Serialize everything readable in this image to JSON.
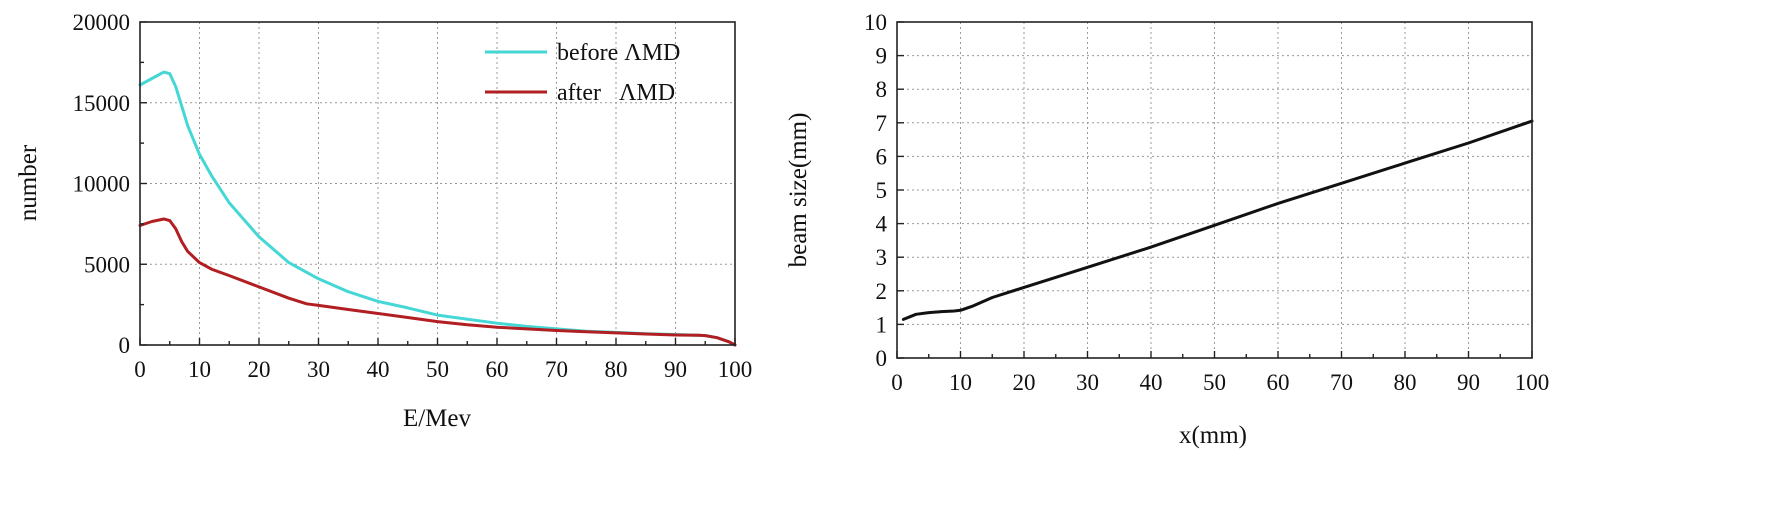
{
  "chart_data": [
    {
      "type": "line",
      "title": "",
      "xlabel": "E/Mev",
      "ylabel": "number",
      "xlim": [
        0,
        100
      ],
      "ylim": [
        0,
        20000
      ],
      "xticks": [
        0,
        10,
        20,
        30,
        40,
        50,
        60,
        70,
        80,
        90,
        100
      ],
      "yticks": [
        0,
        5000,
        10000,
        15000,
        20000
      ],
      "xtick_labels": [
        "0",
        "10",
        "20",
        "30",
        "40",
        "50",
        "60",
        "70",
        "80",
        "90",
        "100"
      ],
      "ytick_labels": [
        "0",
        "5000",
        "10000",
        "15000",
        "20000"
      ],
      "grid": true,
      "legend_position": "top-right",
      "series": [
        {
          "name": "before ΛMD",
          "color": "#45d6d6",
          "x": [
            0,
            2,
            4,
            5,
            6,
            7,
            8,
            10,
            12,
            15,
            20,
            25,
            30,
            35,
            40,
            45,
            50,
            55,
            60,
            65,
            70,
            75,
            80,
            85,
            90,
            95,
            97,
            99,
            100
          ],
          "y": [
            16100,
            16500,
            16900,
            16800,
            16000,
            14800,
            13600,
            11800,
            10500,
            8800,
            6700,
            5100,
            4100,
            3300,
            2700,
            2300,
            1850,
            1600,
            1350,
            1150,
            1000,
            850,
            780,
            700,
            650,
            580,
            450,
            200,
            0
          ]
        },
        {
          "name": "after   ΛMD",
          "color": "#b11f23",
          "x": [
            0,
            2,
            4,
            5,
            6,
            7,
            8,
            10,
            12,
            15,
            20,
            25,
            28,
            30,
            35,
            40,
            45,
            50,
            55,
            60,
            65,
            70,
            75,
            80,
            85,
            90,
            94,
            95,
            97,
            99,
            100
          ],
          "y": [
            7400,
            7650,
            7800,
            7700,
            7200,
            6400,
            5800,
            5100,
            4700,
            4300,
            3600,
            2900,
            2550,
            2450,
            2200,
            1950,
            1700,
            1450,
            1250,
            1100,
            1000,
            900,
            820,
            750,
            680,
            620,
            600,
            580,
            450,
            200,
            0
          ]
        }
      ]
    },
    {
      "type": "line",
      "title": "",
      "xlabel": "x(mm)",
      "ylabel": "beam size(mm)",
      "xlim": [
        0,
        100
      ],
      "ylim": [
        0,
        10
      ],
      "xticks": [
        0,
        10,
        20,
        30,
        40,
        50,
        60,
        70,
        80,
        90,
        100
      ],
      "yticks": [
        0,
        1,
        2,
        3,
        4,
        5,
        6,
        7,
        8,
        9,
        10
      ],
      "xtick_labels": [
        "0",
        "10",
        "20",
        "30",
        "40",
        "50",
        "60",
        "70",
        "80",
        "90",
        "100"
      ],
      "ytick_labels": [
        "0",
        "1",
        "2",
        "3",
        "4",
        "5",
        "6",
        "7",
        "8",
        "9",
        "10"
      ],
      "grid": true,
      "legend_position": "none",
      "series": [
        {
          "name": "beam size",
          "color": "#111111",
          "x": [
            1,
            3,
            5,
            7,
            9,
            10,
            12,
            15,
            20,
            30,
            40,
            50,
            60,
            70,
            80,
            90,
            100
          ],
          "y": [
            1.15,
            1.3,
            1.35,
            1.38,
            1.4,
            1.42,
            1.55,
            1.8,
            2.1,
            2.7,
            3.3,
            3.95,
            4.6,
            5.2,
            5.8,
            6.4,
            7.05
          ]
        }
      ]
    }
  ]
}
